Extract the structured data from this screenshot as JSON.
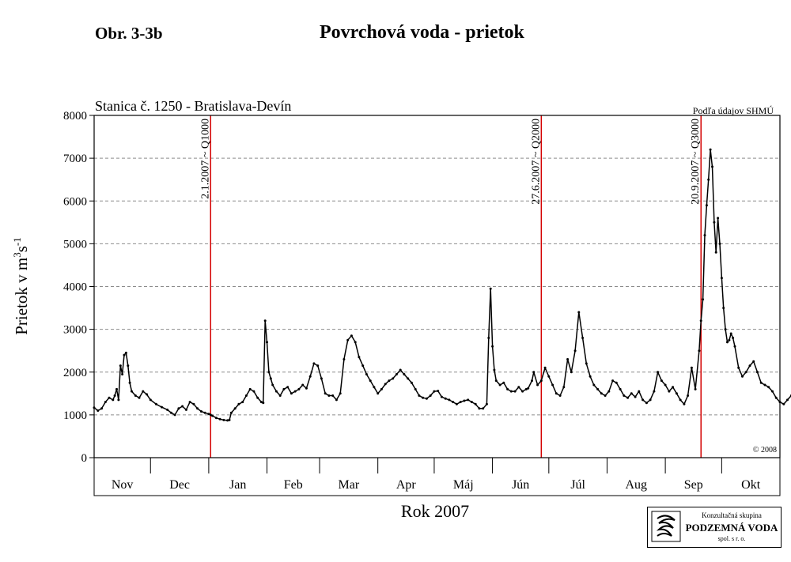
{
  "figure_label": "Obr. 3-3b",
  "title": "Povrchová voda - prietok",
  "colors": {
    "series": "#000000",
    "event_line": "#d40000",
    "grid": "#8c8c8c"
  },
  "logo": {
    "line1": "Konzultačná skupina",
    "line2": "PODZEMNÁ VODA",
    "line3": "spol. s r. o."
  },
  "chart_data": {
    "type": "line",
    "station": "Stanica č. 1250 - Bratislava-Devín",
    "source": "Podľa údajov SHMÚ",
    "copyright": "© 2008",
    "ylabel_main": "Prietok v m",
    "ylabel_sup1": "3",
    "ylabel_mid": "s",
    "ylabel_sup2": "-1",
    "xlabel": "Rok 2007",
    "ylim": [
      0,
      8000
    ],
    "yticks": [
      "0",
      "1000",
      "2000",
      "3000",
      "4000",
      "5000",
      "6000",
      "7000",
      "8000"
    ],
    "grid": "dashed horizontal",
    "months": [
      "Nov",
      "Dec",
      "Jan",
      "Feb",
      "Mar",
      "Apr",
      "Máj",
      "Jún",
      "Júl",
      "Aug",
      "Sep",
      "Okt"
    ],
    "month_days": [
      30,
      31,
      31,
      28,
      31,
      30,
      31,
      30,
      31,
      31,
      30,
      31
    ],
    "events": [
      {
        "day": 62,
        "label": "2.1.2007 ~ Q1000"
      },
      {
        "day": 238,
        "label": "27.6.2007 ~ Q2000"
      },
      {
        "day": 323,
        "label": "20.9.2007 ~ Q3000"
      }
    ],
    "series": [
      {
        "values": [
          [
            0,
            1170
          ],
          [
            2,
            1100
          ],
          [
            4,
            1150
          ],
          [
            6,
            1300
          ],
          [
            8,
            1400
          ],
          [
            10,
            1350
          ],
          [
            11,
            1450
          ],
          [
            12,
            1600
          ],
          [
            13,
            1350
          ],
          [
            14,
            2150
          ],
          [
            15,
            1950
          ],
          [
            16,
            2400
          ],
          [
            17,
            2450
          ],
          [
            18,
            2150
          ],
          [
            19,
            1750
          ],
          [
            20,
            1550
          ],
          [
            22,
            1450
          ],
          [
            24,
            1400
          ],
          [
            26,
            1550
          ],
          [
            28,
            1480
          ],
          [
            30,
            1350
          ],
          [
            33,
            1250
          ],
          [
            36,
            1180
          ],
          [
            39,
            1120
          ],
          [
            41,
            1050
          ],
          [
            43,
            1000
          ],
          [
            45,
            1150
          ],
          [
            47,
            1200
          ],
          [
            49,
            1120
          ],
          [
            51,
            1300
          ],
          [
            53,
            1250
          ],
          [
            55,
            1150
          ],
          [
            57,
            1080
          ],
          [
            59,
            1050
          ],
          [
            61,
            1020
          ],
          [
            62,
            1000
          ],
          [
            63,
            980
          ],
          [
            65,
            930
          ],
          [
            67,
            900
          ],
          [
            69,
            880
          ],
          [
            71,
            870
          ],
          [
            72,
            880
          ],
          [
            73,
            1050
          ],
          [
            75,
            1150
          ],
          [
            77,
            1250
          ],
          [
            79,
            1300
          ],
          [
            81,
            1450
          ],
          [
            83,
            1600
          ],
          [
            85,
            1550
          ],
          [
            87,
            1400
          ],
          [
            89,
            1300
          ],
          [
            90,
            1280
          ],
          [
            91,
            3200
          ],
          [
            92,
            2700
          ],
          [
            93,
            2000
          ],
          [
            94,
            1850
          ],
          [
            95,
            1700
          ],
          [
            97,
            1550
          ],
          [
            99,
            1450
          ],
          [
            101,
            1600
          ],
          [
            103,
            1650
          ],
          [
            105,
            1500
          ],
          [
            107,
            1550
          ],
          [
            109,
            1600
          ],
          [
            111,
            1700
          ],
          [
            113,
            1620
          ],
          [
            115,
            1900
          ],
          [
            117,
            2200
          ],
          [
            119,
            2150
          ],
          [
            121,
            1850
          ],
          [
            123,
            1500
          ],
          [
            125,
            1450
          ],
          [
            127,
            1450
          ],
          [
            129,
            1350
          ],
          [
            131,
            1500
          ],
          [
            133,
            2300
          ],
          [
            135,
            2750
          ],
          [
            137,
            2850
          ],
          [
            139,
            2700
          ],
          [
            141,
            2350
          ],
          [
            143,
            2150
          ],
          [
            145,
            1950
          ],
          [
            147,
            1800
          ],
          [
            149,
            1650
          ],
          [
            151,
            1500
          ],
          [
            153,
            1600
          ],
          [
            155,
            1720
          ],
          [
            157,
            1800
          ],
          [
            159,
            1850
          ],
          [
            161,
            1950
          ],
          [
            163,
            2050
          ],
          [
            165,
            1950
          ],
          [
            167,
            1850
          ],
          [
            169,
            1750
          ],
          [
            171,
            1600
          ],
          [
            173,
            1450
          ],
          [
            175,
            1400
          ],
          [
            177,
            1380
          ],
          [
            179,
            1450
          ],
          [
            181,
            1550
          ],
          [
            183,
            1560
          ],
          [
            185,
            1420
          ],
          [
            187,
            1380
          ],
          [
            189,
            1350
          ],
          [
            191,
            1300
          ],
          [
            193,
            1250
          ],
          [
            195,
            1300
          ],
          [
            197,
            1330
          ],
          [
            199,
            1350
          ],
          [
            201,
            1300
          ],
          [
            203,
            1250
          ],
          [
            205,
            1150
          ],
          [
            207,
            1150
          ],
          [
            209,
            1250
          ],
          [
            210,
            2800
          ],
          [
            211,
            3950
          ],
          [
            212,
            2600
          ],
          [
            213,
            2050
          ],
          [
            214,
            1800
          ],
          [
            216,
            1700
          ],
          [
            218,
            1750
          ],
          [
            220,
            1600
          ],
          [
            222,
            1550
          ],
          [
            224,
            1550
          ],
          [
            226,
            1650
          ],
          [
            228,
            1550
          ],
          [
            230,
            1600
          ],
          [
            231,
            1620
          ],
          [
            233,
            1800
          ],
          [
            234,
            2000
          ],
          [
            236,
            1700
          ],
          [
            238,
            1800
          ],
          [
            240,
            2100
          ],
          [
            242,
            1900
          ],
          [
            244,
            1700
          ],
          [
            246,
            1500
          ],
          [
            248,
            1450
          ],
          [
            250,
            1650
          ],
          [
            252,
            2300
          ],
          [
            254,
            2000
          ],
          [
            256,
            2500
          ],
          [
            258,
            3400
          ],
          [
            260,
            2800
          ],
          [
            262,
            2200
          ],
          [
            264,
            1900
          ],
          [
            266,
            1700
          ],
          [
            268,
            1600
          ],
          [
            270,
            1500
          ],
          [
            272,
            1450
          ],
          [
            274,
            1550
          ],
          [
            276,
            1800
          ],
          [
            278,
            1750
          ],
          [
            280,
            1600
          ],
          [
            282,
            1450
          ],
          [
            284,
            1400
          ],
          [
            286,
            1500
          ],
          [
            288,
            1420
          ],
          [
            290,
            1550
          ],
          [
            292,
            1350
          ],
          [
            294,
            1280
          ],
          [
            296,
            1350
          ],
          [
            298,
            1550
          ],
          [
            300,
            2000
          ],
          [
            302,
            1800
          ],
          [
            304,
            1700
          ],
          [
            306,
            1550
          ],
          [
            308,
            1650
          ],
          [
            310,
            1500
          ],
          [
            312,
            1350
          ],
          [
            314,
            1250
          ],
          [
            316,
            1450
          ],
          [
            318,
            2100
          ],
          [
            320,
            1600
          ],
          [
            322,
            2500
          ],
          [
            323,
            3200
          ],
          [
            324,
            3700
          ],
          [
            325,
            5200
          ],
          [
            326,
            5900
          ],
          [
            327,
            6500
          ],
          [
            328,
            7200
          ],
          [
            329,
            6800
          ],
          [
            330,
            5500
          ],
          [
            331,
            4800
          ],
          [
            332,
            5600
          ],
          [
            333,
            5000
          ],
          [
            334,
            4200
          ],
          [
            335,
            3500
          ],
          [
            336,
            3000
          ],
          [
            337,
            2700
          ],
          [
            338,
            2750
          ],
          [
            339,
            2900
          ],
          [
            340,
            2800
          ],
          [
            341,
            2600
          ],
          [
            343,
            2100
          ],
          [
            345,
            1900
          ],
          [
            347,
            2000
          ],
          [
            349,
            2150
          ],
          [
            351,
            2250
          ],
          [
            353,
            2000
          ],
          [
            355,
            1750
          ],
          [
            357,
            1700
          ],
          [
            359,
            1650
          ],
          [
            361,
            1550
          ],
          [
            363,
            1400
          ],
          [
            365,
            1300
          ],
          [
            367,
            1250
          ],
          [
            369,
            1350
          ],
          [
            371,
            1450
          ],
          [
            373,
            1550
          ],
          [
            375,
            1600
          ],
          [
            377,
            1700
          ],
          [
            379,
            1800
          ],
          [
            381,
            2100
          ],
          [
            383,
            1800
          ],
          [
            385,
            1750
          ]
        ]
      }
    ]
  }
}
